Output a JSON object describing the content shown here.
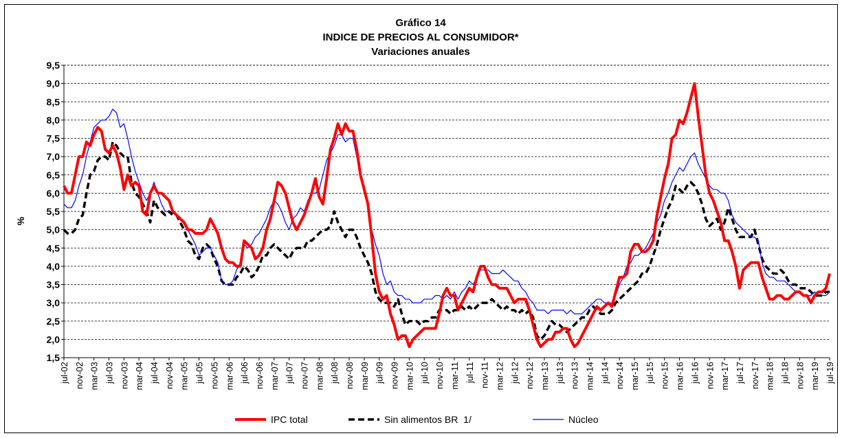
{
  "chart_data": {
    "type": "line",
    "title": [
      "Gráfico 14",
      "INDICE DE PRECIOS AL CONSUMIDOR*",
      "Variaciones anuales"
    ],
    "y_label": "%",
    "categories": [
      "jul-02",
      null,
      null,
      null,
      "nov-02",
      null,
      null,
      null,
      "mar-03",
      null,
      null,
      null,
      "jul-03",
      null,
      null,
      null,
      "nov-03",
      null,
      null,
      null,
      "mar-04",
      null,
      null,
      null,
      "jul-04",
      null,
      null,
      null,
      "nov-04",
      null,
      null,
      null,
      "mar-05",
      null,
      null,
      null,
      "jul-05",
      null,
      null,
      null,
      "nov-05",
      null,
      null,
      null,
      "mar-06",
      null,
      null,
      null,
      "jul-06",
      null,
      null,
      null,
      "nov-06",
      null,
      null,
      null,
      "mar-07",
      null,
      null,
      null,
      "jul-07",
      null,
      null,
      null,
      "nov-07",
      null,
      null,
      null,
      "mar-08",
      null,
      null,
      null,
      "jul-08",
      null,
      null,
      null,
      "nov-08",
      null,
      null,
      null,
      "mar-09",
      null,
      null,
      null,
      "jul-09",
      null,
      null,
      null,
      "nov-09",
      null,
      null,
      null,
      "mar-10",
      null,
      null,
      null,
      "jul-10",
      null,
      null,
      null,
      "nov-10",
      null,
      null,
      null,
      "mar-11",
      null,
      null,
      null,
      "jul-11",
      null,
      null,
      null,
      "nov-11",
      null,
      null,
      null,
      "mar-12",
      null,
      null,
      null,
      "jul-12",
      null,
      null,
      null,
      "nov-12",
      null,
      null,
      null,
      "mar-13",
      null,
      null,
      null,
      "jul-13",
      null,
      null,
      null,
      "nov-13",
      null,
      null,
      null,
      "mar-14",
      null,
      null,
      null,
      "jul-14",
      null,
      null,
      null,
      "nov-14",
      null,
      null,
      null,
      "mar-15",
      null,
      null,
      null,
      "jul-15",
      null,
      null,
      null,
      "nov-15",
      null,
      null,
      null,
      "mar-16",
      null,
      null,
      null,
      "jul-16",
      null,
      null,
      null,
      "nov-16",
      null,
      null,
      null,
      "mar-17",
      null,
      null,
      null,
      "jul-17",
      null,
      null,
      null,
      "nov-17",
      null,
      null,
      null,
      "mar-18",
      null,
      null,
      null,
      "jul-18",
      null,
      null,
      null,
      "nov-18",
      null,
      null,
      null,
      "mar-19",
      null,
      null,
      null,
      "jul-19"
    ],
    "series": [
      {
        "name": "IPC total",
        "color": "#ff0000",
        "width": 4,
        "dash": "",
        "values": [
          6.2,
          6.0,
          6.0,
          6.5,
          7.0,
          7.0,
          7.4,
          7.3,
          7.6,
          7.8,
          7.7,
          7.2,
          7.1,
          7.3,
          7.1,
          6.7,
          6.1,
          6.5,
          6.2,
          6.3,
          6.2,
          5.5,
          5.4,
          6.0,
          6.2,
          6.0,
          6.0,
          5.9,
          5.8,
          5.5,
          5.4,
          5.3,
          5.2,
          5.0,
          5.0,
          4.9,
          4.9,
          4.9,
          5.0,
          5.3,
          5.1,
          4.9,
          4.5,
          4.2,
          4.1,
          4.1,
          4.0,
          4.0,
          4.7,
          4.6,
          4.5,
          4.2,
          4.3,
          4.5,
          5.0,
          5.3,
          5.8,
          6.3,
          6.2,
          6.0,
          5.6,
          5.2,
          5.0,
          5.2,
          5.4,
          5.7,
          6.0,
          6.4,
          5.9,
          5.7,
          6.4,
          7.2,
          7.5,
          7.9,
          7.6,
          7.9,
          7.7,
          7.7,
          7.2,
          6.5,
          6.1,
          5.7,
          4.8,
          3.8,
          3.3,
          3.1,
          3.2,
          2.7,
          2.4,
          2.0,
          2.1,
          2.1,
          1.8,
          2.0,
          2.1,
          2.2,
          2.3,
          2.3,
          2.3,
          2.3,
          2.7,
          3.2,
          3.4,
          3.2,
          3.2,
          2.8,
          3.0,
          3.2,
          3.4,
          3.3,
          3.7,
          4.0,
          4.0,
          3.7,
          3.5,
          3.5,
          3.4,
          3.4,
          3.4,
          3.2,
          3.0,
          3.1,
          3.1,
          3.1,
          2.8,
          2.4,
          2.0,
          1.8,
          1.9,
          2.0,
          2.0,
          2.2,
          2.2,
          2.3,
          2.3,
          2.0,
          1.8,
          1.9,
          2.1,
          2.3,
          2.5,
          2.7,
          2.9,
          2.8,
          2.9,
          3.0,
          2.9,
          3.3,
          3.7,
          3.7,
          3.8,
          4.4,
          4.6,
          4.6,
          4.4,
          4.4,
          4.5,
          4.7,
          5.4,
          5.9,
          6.4,
          6.8,
          7.5,
          7.6,
          8.0,
          7.9,
          8.2,
          8.6,
          9.0,
          8.1,
          7.3,
          6.5,
          6.0,
          5.8,
          5.5,
          5.2,
          4.7,
          4.7,
          4.4,
          4.0,
          3.4,
          3.9,
          4.0,
          4.1,
          4.1,
          4.1,
          3.7,
          3.4,
          3.1,
          3.1,
          3.2,
          3.2,
          3.1,
          3.1,
          3.2,
          3.3,
          3.3,
          3.2,
          3.2,
          3.0,
          3.2,
          3.3,
          3.3,
          3.4,
          3.8
        ]
      },
      {
        "name": "Sin alimentos BR  1/",
        "color": "#000000",
        "width": 3.5,
        "dash": "9 5",
        "values": [
          5.0,
          4.9,
          4.9,
          5.0,
          5.3,
          5.4,
          6.0,
          6.5,
          6.6,
          6.9,
          7.0,
          7.0,
          6.9,
          7.4,
          7.3,
          7.1,
          7.0,
          7.0,
          6.3,
          6.0,
          5.9,
          5.7,
          5.5,
          5.2,
          5.8,
          5.6,
          5.5,
          5.4,
          5.5,
          5.4,
          5.4,
          5.2,
          5.0,
          4.7,
          4.6,
          4.3,
          4.2,
          4.5,
          4.6,
          4.5,
          4.2,
          4.0,
          3.6,
          3.5,
          3.5,
          3.5,
          3.7,
          3.8,
          4.0,
          3.9,
          3.7,
          3.8,
          4.0,
          4.3,
          4.3,
          4.5,
          4.6,
          4.5,
          4.4,
          4.3,
          4.2,
          4.4,
          4.5,
          4.5,
          4.5,
          4.7,
          4.7,
          4.8,
          4.9,
          5.0,
          5.0,
          5.1,
          5.5,
          5.2,
          5.0,
          4.8,
          5.0,
          5.0,
          4.8,
          4.5,
          4.3,
          4.1,
          3.8,
          3.3,
          3.1,
          3.0,
          3.0,
          3.0,
          2.9,
          3.1,
          2.7,
          2.4,
          2.5,
          2.5,
          2.5,
          2.4,
          2.5,
          2.5,
          2.6,
          2.6,
          2.8,
          2.8,
          2.8,
          2.7,
          2.8,
          2.8,
          2.9,
          2.8,
          2.9,
          2.8,
          2.9,
          3.0,
          3.0,
          3.0,
          3.1,
          3.0,
          2.9,
          2.8,
          2.9,
          2.8,
          2.8,
          2.7,
          2.8,
          2.7,
          2.8,
          2.6,
          2.1,
          2.0,
          2.1,
          2.3,
          2.5,
          2.4,
          2.4,
          2.3,
          2.2,
          2.3,
          2.4,
          2.5,
          2.6,
          2.6,
          2.8,
          2.9,
          2.8,
          2.7,
          2.7,
          2.7,
          2.8,
          3.0,
          3.1,
          3.2,
          3.3,
          3.4,
          3.5,
          3.6,
          3.8,
          3.8,
          4.0,
          4.3,
          4.6,
          5.0,
          5.3,
          5.6,
          5.8,
          6.2,
          6.1,
          6.0,
          6.2,
          6.3,
          6.2,
          6.0,
          5.7,
          5.3,
          5.1,
          5.2,
          5.3,
          5.0,
          5.2,
          5.6,
          5.3,
          5.0,
          4.8,
          4.8,
          4.8,
          4.8,
          5.0,
          4.6,
          4.2,
          4.0,
          3.9,
          3.8,
          3.8,
          3.9,
          3.8,
          3.6,
          3.5,
          3.5,
          3.4,
          3.4,
          3.4,
          3.3,
          3.2,
          3.2,
          3.2,
          3.3,
          3.3
        ]
      },
      {
        "name": "Núcleo",
        "color": "#0000ff",
        "width": 1.2,
        "dash": "",
        "values": [
          5.7,
          5.6,
          5.6,
          5.8,
          6.2,
          6.5,
          7.0,
          7.4,
          7.8,
          7.9,
          8.0,
          8.0,
          8.1,
          8.3,
          8.2,
          7.8,
          7.9,
          7.5,
          7.0,
          6.6,
          6.3,
          6.0,
          5.8,
          6.0,
          6.3,
          6.0,
          5.7,
          5.5,
          5.5,
          5.5,
          5.4,
          5.3,
          5.2,
          5.0,
          4.8,
          4.6,
          4.3,
          4.4,
          4.5,
          4.5,
          4.3,
          4.1,
          3.6,
          3.5,
          3.5,
          3.6,
          3.9,
          4.1,
          4.6,
          4.5,
          4.6,
          4.8,
          4.9,
          5.1,
          5.3,
          5.6,
          5.8,
          5.7,
          5.5,
          5.2,
          5.0,
          5.3,
          5.4,
          5.6,
          5.5,
          5.8,
          6.0,
          6.0,
          6.1,
          6.5,
          6.9,
          7.1,
          7.3,
          7.6,
          7.6,
          7.4,
          7.5,
          7.5,
          7.0,
          6.5,
          6.2,
          5.7,
          5.0,
          4.6,
          4.3,
          3.8,
          3.5,
          3.6,
          3.3,
          3.2,
          3.2,
          3.1,
          3.1,
          3.0,
          3.0,
          3.0,
          3.1,
          3.1,
          3.1,
          3.2,
          3.2,
          3.1,
          3.2,
          3.1,
          3.3,
          3.1,
          3.3,
          3.4,
          3.6,
          3.5,
          3.7,
          3.9,
          3.9,
          3.9,
          3.8,
          3.8,
          3.8,
          3.9,
          3.8,
          3.7,
          3.6,
          3.6,
          3.4,
          3.3,
          3.1,
          3.0,
          2.8,
          2.8,
          2.8,
          2.7,
          2.8,
          2.8,
          2.8,
          2.8,
          2.7,
          2.8,
          2.7,
          2.7,
          2.7,
          2.8,
          2.9,
          3.0,
          3.1,
          3.1,
          3.0,
          3.0,
          3.0,
          3.2,
          3.5,
          3.7,
          4.0,
          4.1,
          4.3,
          4.3,
          4.4,
          4.5,
          4.7,
          4.9,
          5.2,
          5.4,
          5.8,
          6.0,
          6.3,
          6.5,
          6.7,
          6.6,
          6.8,
          7.0,
          7.1,
          6.8,
          6.6,
          6.4,
          6.2,
          6.1,
          6.1,
          6.0,
          6.0,
          5.8,
          5.4,
          5.2,
          5.1,
          5.0,
          4.9,
          4.8,
          4.8,
          4.7,
          4.1,
          3.8,
          3.7,
          3.7,
          3.6,
          3.6,
          3.6,
          3.5,
          3.4,
          3.3,
          3.3,
          3.2,
          3.2,
          3.2,
          3.3,
          3.2,
          3.2,
          3.2,
          3.3
        ]
      }
    ],
    "ylim": [
      1.5,
      9.5
    ],
    "yticks": [
      {
        "value": 1.5,
        "label": "1,5"
      },
      {
        "value": 2,
        "label": "2,0"
      },
      {
        "value": 2.5,
        "label": "2,5"
      },
      {
        "value": 3,
        "label": "3,0"
      },
      {
        "value": 3.5,
        "label": "3,5"
      },
      {
        "value": 4,
        "label": "4,0"
      },
      {
        "value": 4.5,
        "label": "4,5"
      },
      {
        "value": 5,
        "label": "5,0"
      },
      {
        "value": 5.5,
        "label": "5,5"
      },
      {
        "value": 6,
        "label": "6,0"
      },
      {
        "value": 6.5,
        "label": "6,5"
      },
      {
        "value": 7,
        "label": "7,0"
      },
      {
        "value": 7.5,
        "label": "7,5"
      },
      {
        "value": 8,
        "label": "8,0"
      },
      {
        "value": 8.5,
        "label": "8,5"
      },
      {
        "value": 9,
        "label": "9,0"
      },
      {
        "value": 9.5,
        "label": "9,5"
      }
    ],
    "grid": true,
    "legend": "bottom"
  }
}
